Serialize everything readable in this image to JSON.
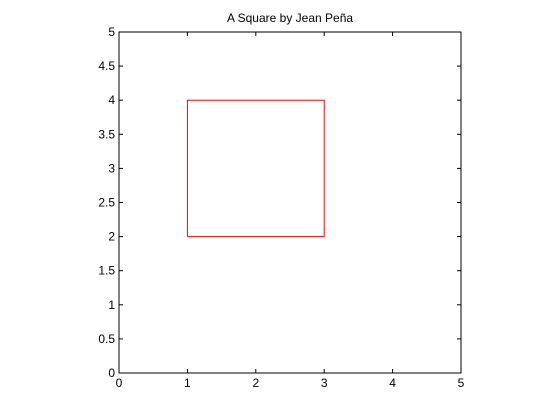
{
  "chart_data": {
    "type": "line",
    "title": "A Square by Jean Peña",
    "xlabel": "",
    "ylabel": "",
    "xlim": [
      0,
      5
    ],
    "ylim": [
      0,
      5
    ],
    "xticks": [
      "0",
      "1",
      "2",
      "3",
      "4",
      "5"
    ],
    "yticks": [
      "0",
      "0.5",
      "1",
      "1.5",
      "2",
      "2.5",
      "3",
      "3.5",
      "4",
      "4.5",
      "5"
    ],
    "grid": false,
    "series": [
      {
        "color": "#ff0000",
        "x": [
          1,
          3,
          3,
          1,
          1
        ],
        "y": [
          2,
          2,
          4,
          4,
          2
        ]
      }
    ]
  }
}
